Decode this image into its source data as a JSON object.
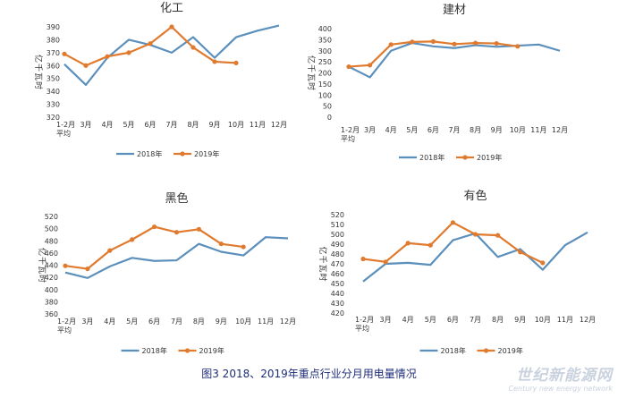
{
  "caption": "图3   2018、2019年重点行业分月用电量情况",
  "watermark": {
    "title": "世纪新能源网",
    "subtitle": "Century new energy network"
  },
  "colors": {
    "series_2018": "#5b8fbc",
    "series_2019": "#e07a2e",
    "axis_text": "#333333"
  },
  "chart_data": [
    {
      "type": "line",
      "title": "化工",
      "ylabel": "亿千瓦时",
      "categories": [
        "1-2月平均",
        "3月",
        "4月",
        "5月",
        "6月",
        "7月",
        "8月",
        "9月",
        "10月",
        "11月",
        "12月"
      ],
      "yticks": [
        320,
        330,
        340,
        350,
        360,
        370,
        380,
        390
      ],
      "ylim": [
        320,
        390
      ],
      "legend_position": "bottom",
      "series": [
        {
          "name": "2018年",
          "values": [
            361,
            345,
            366,
            380,
            376,
            370,
            382,
            366,
            382,
            387,
            391
          ]
        },
        {
          "name": "2019年",
          "values": [
            369,
            360,
            367,
            370,
            377,
            390,
            374,
            363,
            362,
            null,
            null
          ]
        }
      ]
    },
    {
      "type": "line",
      "title": "建材",
      "ylabel": "亿千瓦时",
      "categories": [
        "1-2月平均",
        "3月",
        "4月",
        "5月",
        "6月",
        "7月",
        "8月",
        "9月",
        "10月",
        "11月",
        "12月"
      ],
      "yticks": [
        0,
        50,
        100,
        150,
        200,
        250,
        300,
        350,
        400
      ],
      "ylim": [
        0,
        400
      ],
      "legend_position": "bottom",
      "series": [
        {
          "name": "2018年",
          "values": [
            228,
            180,
            300,
            335,
            320,
            312,
            325,
            318,
            323,
            328,
            300
          ]
        },
        {
          "name": "2019年",
          "values": [
            228,
            235,
            328,
            340,
            342,
            330,
            335,
            333,
            320,
            null,
            null
          ]
        }
      ]
    },
    {
      "type": "line",
      "title": "黑色",
      "ylabel": "亿千瓦时",
      "categories": [
        "1-2月平均",
        "3月",
        "4月",
        "5月",
        "6月",
        "7月",
        "8月",
        "9月",
        "10月",
        "11月",
        "12月"
      ],
      "yticks": [
        360,
        380,
        400,
        420,
        440,
        460,
        480,
        500,
        520
      ],
      "ylim": [
        360,
        520
      ],
      "legend_position": "bottom",
      "series": [
        {
          "name": "2018年",
          "values": [
            428,
            419,
            438,
            452,
            447,
            448,
            475,
            462,
            456,
            486,
            484
          ]
        },
        {
          "name": "2019年",
          "values": [
            439,
            434,
            464,
            482,
            503,
            494,
            499,
            475,
            470,
            null,
            null
          ]
        }
      ]
    },
    {
      "type": "line",
      "title": "有色",
      "ylabel": "亿千瓦时",
      "categories": [
        "1-2月平均",
        "3月",
        "4月",
        "5月",
        "6月",
        "7月",
        "8月",
        "9月",
        "10月",
        "11月",
        "12月"
      ],
      "yticks": [
        420,
        430,
        440,
        450,
        460,
        470,
        480,
        490,
        500,
        510,
        520
      ],
      "ylim": [
        420,
        520
      ],
      "legend_position": "bottom",
      "series": [
        {
          "name": "2018年",
          "values": [
            452,
            470,
            471,
            469,
            494,
            501,
            477,
            485,
            464,
            489,
            502
          ]
        },
        {
          "name": "2019年",
          "values": [
            475,
            472,
            491,
            489,
            512,
            500,
            499,
            482,
            471,
            null,
            null
          ]
        }
      ]
    }
  ]
}
